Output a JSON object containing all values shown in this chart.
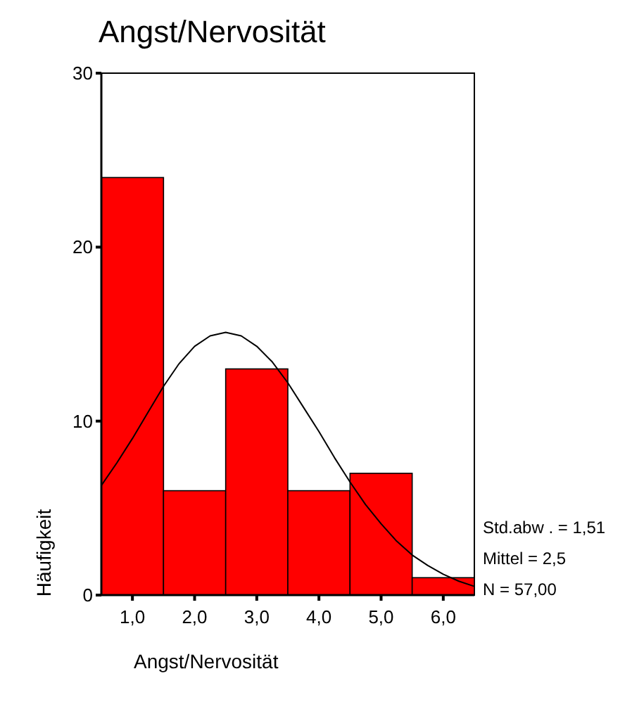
{
  "chart_data": {
    "type": "histogram",
    "title": "Angst/Nervosität",
    "xlabel": "Angst/Nervosität",
    "ylabel": "Häufigkeit",
    "bins": [
      0.5,
      1.5,
      2.5,
      3.5,
      4.5,
      5.5,
      6.5
    ],
    "values": [
      24,
      6,
      13,
      6,
      7,
      1
    ],
    "color": "#ff0000",
    "series": [
      {
        "type": "line",
        "color": "#000000",
        "x": [
          0.5,
          0.75,
          1,
          1.25,
          1.5,
          1.75,
          2,
          2.25,
          2.5,
          2.75,
          3,
          3.25,
          3.5,
          3.75,
          4,
          4.25,
          4.5,
          4.75,
          5,
          5.25,
          5.5,
          5.75,
          6,
          6.25,
          6.5
        ],
        "values": [
          6.3,
          7.6,
          9.0,
          10.5,
          12.0,
          13.3,
          14.3,
          14.9,
          15.1,
          14.9,
          14.3,
          13.4,
          12.2,
          10.8,
          9.4,
          7.9,
          6.5,
          5.2,
          4.1,
          3.1,
          2.3,
          1.7,
          1.2,
          0.8,
          0.5
        ]
      }
    ],
    "xlim": [
      0.5,
      6.5
    ],
    "xticks": [
      {
        "value": 1,
        "label": "1,0"
      },
      {
        "value": 2,
        "label": "2,0"
      },
      {
        "value": 3,
        "label": "3,0"
      },
      {
        "value": 4,
        "label": "4,0"
      },
      {
        "value": 5,
        "label": "5,0"
      },
      {
        "value": 6,
        "label": "6,0"
      }
    ],
    "ylim": [
      0,
      30
    ],
    "yticks": [
      0,
      10,
      20,
      30
    ],
    "grid": false,
    "annotations": [
      "Std.abw . = 1,51",
      "Mittel = 2,5",
      "N = 57,00"
    ]
  }
}
